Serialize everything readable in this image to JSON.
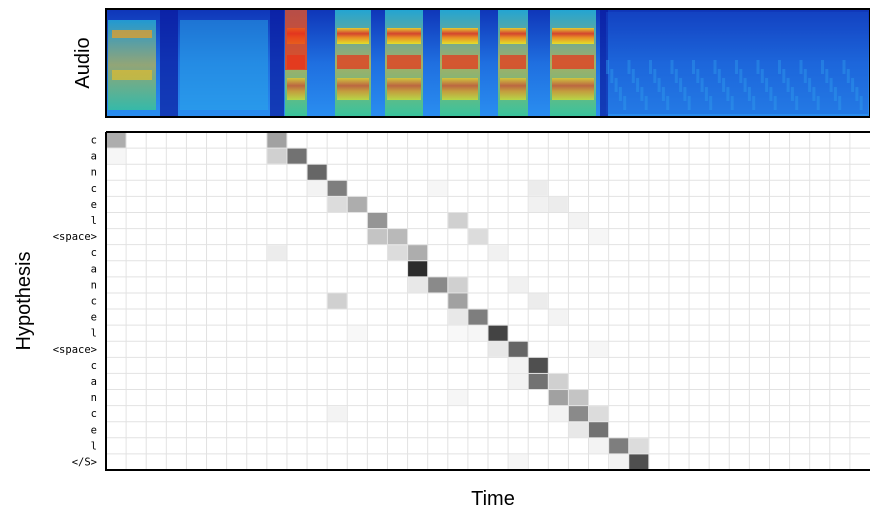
{
  "figure": {
    "audio_label": "Audio",
    "ylabel": "Hypothesis",
    "xlabel": "Time"
  },
  "spectrogram": {
    "colormap": "jet",
    "background_color": "#1a5bd6",
    "dark_band_color": "#0a1aa0",
    "hot_color": "#e8321a"
  },
  "chart_data": {
    "type": "heatmap",
    "title": "",
    "xlabel": "Time",
    "ylabel": "Hypothesis",
    "colormap": "greys",
    "grid": true,
    "x_count": 38,
    "y_labels": [
      "c",
      "a",
      "n",
      "c",
      "e",
      "l",
      "<space>",
      "c",
      "a",
      "n",
      "c",
      "e",
      "l",
      "<space>",
      "c",
      "a",
      "n",
      "c",
      "e",
      "l",
      "</S>"
    ],
    "cells": [
      [
        0,
        0,
        0.35
      ],
      [
        0,
        8,
        0.4
      ],
      [
        1,
        0,
        0.04
      ],
      [
        1,
        8,
        0.2
      ],
      [
        1,
        9,
        0.6
      ],
      [
        2,
        10,
        0.65
      ],
      [
        3,
        11,
        0.55
      ],
      [
        3,
        10,
        0.05
      ],
      [
        3,
        16,
        0.04
      ],
      [
        3,
        21,
        0.08
      ],
      [
        4,
        11,
        0.15
      ],
      [
        4,
        12,
        0.35
      ],
      [
        4,
        21,
        0.06
      ],
      [
        4,
        22,
        0.08
      ],
      [
        5,
        13,
        0.45
      ],
      [
        5,
        17,
        0.2
      ],
      [
        5,
        23,
        0.05
      ],
      [
        6,
        13,
        0.25
      ],
      [
        6,
        14,
        0.3
      ],
      [
        6,
        18,
        0.15
      ],
      [
        6,
        24,
        0.04
      ],
      [
        7,
        14,
        0.15
      ],
      [
        7,
        15,
        0.35
      ],
      [
        7,
        8,
        0.08
      ],
      [
        7,
        19,
        0.06
      ],
      [
        8,
        15,
        0.9
      ],
      [
        9,
        16,
        0.5
      ],
      [
        9,
        15,
        0.1
      ],
      [
        9,
        17,
        0.2
      ],
      [
        9,
        20,
        0.06
      ],
      [
        10,
        17,
        0.4
      ],
      [
        10,
        11,
        0.2
      ],
      [
        10,
        21,
        0.08
      ],
      [
        11,
        18,
        0.55
      ],
      [
        11,
        17,
        0.1
      ],
      [
        11,
        22,
        0.05
      ],
      [
        12,
        18,
        0.04
      ],
      [
        12,
        17,
        0.03
      ],
      [
        12,
        19,
        0.8
      ],
      [
        12,
        12,
        0.03
      ],
      [
        13,
        19,
        0.1
      ],
      [
        13,
        20,
        0.65
      ],
      [
        13,
        24,
        0.04
      ],
      [
        14,
        21,
        0.75
      ],
      [
        14,
        20,
        0.05
      ],
      [
        15,
        20,
        0.05
      ],
      [
        15,
        21,
        0.6
      ],
      [
        15,
        22,
        0.2
      ],
      [
        16,
        22,
        0.4
      ],
      [
        16,
        23,
        0.25
      ],
      [
        16,
        17,
        0.04
      ],
      [
        17,
        22,
        0.05
      ],
      [
        17,
        23,
        0.5
      ],
      [
        17,
        24,
        0.15
      ],
      [
        17,
        11,
        0.05
      ],
      [
        18,
        23,
        0.1
      ],
      [
        18,
        24,
        0.6
      ],
      [
        19,
        24,
        0.05
      ],
      [
        19,
        25,
        0.55
      ],
      [
        19,
        26,
        0.15
      ],
      [
        20,
        25,
        0.05
      ],
      [
        20,
        26,
        0.75
      ],
      [
        20,
        20,
        0.04
      ]
    ]
  }
}
